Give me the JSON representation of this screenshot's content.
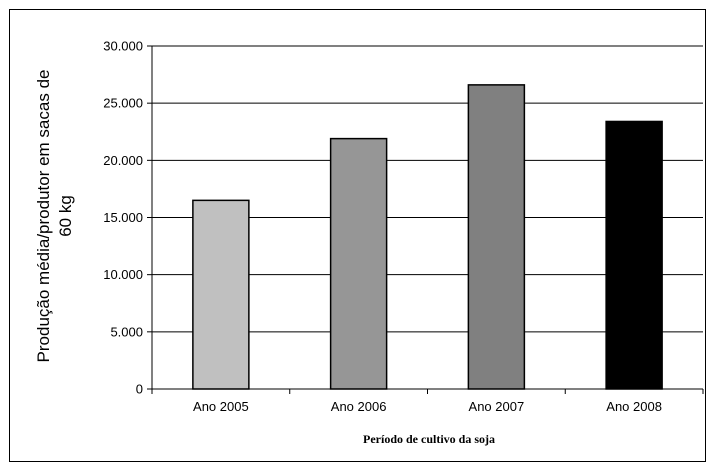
{
  "chart_data": {
    "type": "bar",
    "categories": [
      "Ano 2005",
      "Ano 2006",
      "Ano 2007",
      "Ano 2008"
    ],
    "values": [
      16500,
      21900,
      26600,
      23400
    ],
    "bar_colors": [
      "#c0c0c0",
      "#969696",
      "#808080",
      "#000000"
    ],
    "xlabel": "Período de cultivo da soja",
    "ylabel_line1": "Produção média/produtor em sacas de",
    "ylabel_line2": "60 kg",
    "ylim": [
      0,
      30000
    ],
    "y_ticks": [
      0,
      5000,
      10000,
      15000,
      20000,
      25000,
      30000
    ],
    "y_tick_labels": [
      "0",
      "5.000",
      "10.000",
      "15.000",
      "20.000",
      "25.000",
      "30.000"
    ],
    "grid": "horizontal",
    "legend": "none"
  }
}
